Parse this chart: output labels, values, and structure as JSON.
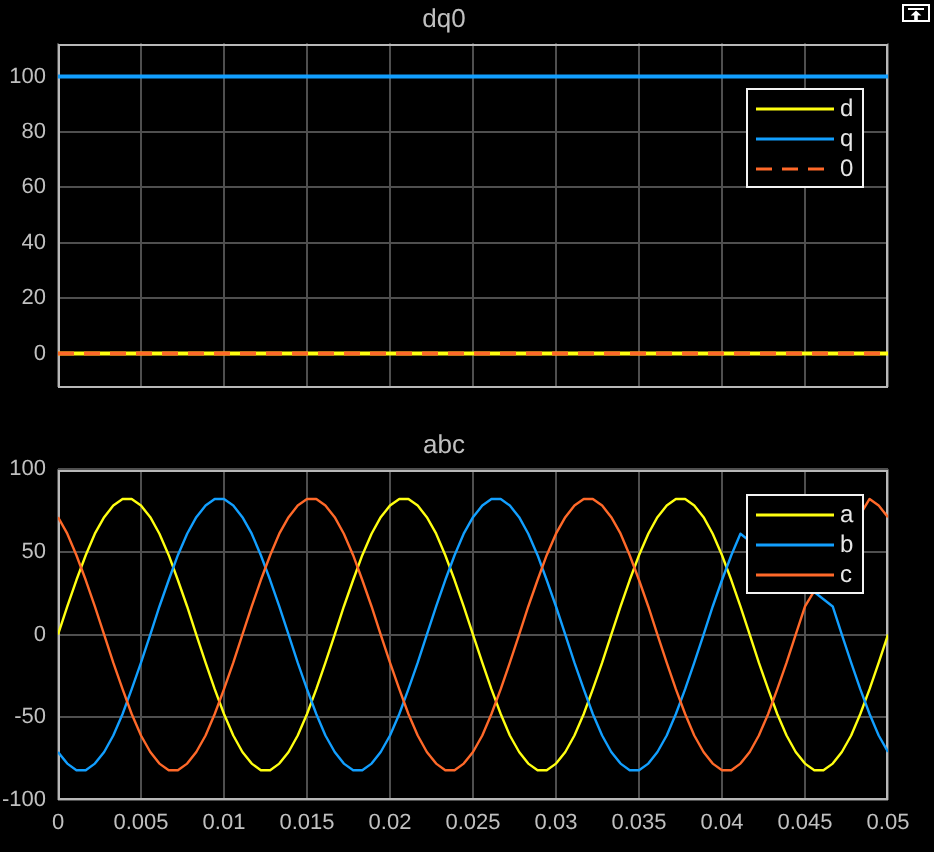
{
  "chart_data": [
    {
      "type": "line",
      "title": "dq0",
      "x": [
        0,
        0.05
      ],
      "series": [
        {
          "name": "d",
          "color": "#ffff11",
          "values": [
            0,
            0
          ]
        },
        {
          "name": "q",
          "color": "#129fff",
          "values": [
            100,
            100
          ]
        },
        {
          "name": "0",
          "color": "#ff6929",
          "values": [
            0,
            0
          ],
          "line_style": "dashed"
        }
      ],
      "xlim": [
        0,
        0.05
      ],
      "xticks": [
        0,
        0.005,
        0.01,
        0.015,
        0.02,
        0.025,
        0.03,
        0.035,
        0.04,
        0.045,
        0.05
      ],
      "ylim": [
        -12,
        112
      ],
      "yticks": [
        0,
        20,
        40,
        60,
        80,
        100
      ],
      "tick_labels": "y",
      "grid": true,
      "legend": "top right"
    },
    {
      "type": "line",
      "title": "abc",
      "x": [
        0,
        0.00056,
        0.00111,
        0.00167,
        0.00222,
        0.00278,
        0.00333,
        0.00389,
        0.00444,
        0.005,
        0.00556,
        0.00611,
        0.00667,
        0.00722,
        0.00778,
        0.00833,
        0.00889,
        0.00944,
        0.01,
        0.01056,
        0.01111,
        0.01167,
        0.01222,
        0.01278,
        0.01333,
        0.01389,
        0.01444,
        0.015,
        0.01556,
        0.01611,
        0.01667,
        0.01722,
        0.01778,
        0.01833,
        0.01889,
        0.01944,
        0.02,
        0.02056,
        0.02111,
        0.02167,
        0.02222,
        0.02278,
        0.02333,
        0.02389,
        0.02444,
        0.025,
        0.02556,
        0.02611,
        0.02667,
        0.02722,
        0.02778,
        0.02833,
        0.02889,
        0.02944,
        0.03,
        0.03056,
        0.03111,
        0.03167,
        0.03222,
        0.03278,
        0.03333,
        0.03389,
        0.03444,
        0.035,
        0.03556,
        0.03611,
        0.03667,
        0.03722,
        0.03778,
        0.03833,
        0.03889,
        0.03944,
        0.04,
        0.04056,
        0.04111,
        0.04167,
        0.04222,
        0.04278,
        0.04333,
        0.04389,
        0.04444,
        0.045,
        0.04556,
        0.04611,
        0.04667,
        0.04722,
        0.04778,
        0.04833,
        0.04889,
        0.04944,
        0.05
      ],
      "series": [
        {
          "name": "a",
          "color": "#ffff11",
          "values": [
            0,
            17,
            33,
            48,
            61,
            71,
            78,
            82,
            82,
            78,
            71,
            61,
            48,
            33,
            17,
            0,
            -17,
            -33,
            -48,
            -61,
            -71,
            -78,
            -82,
            -82,
            -78,
            -71,
            -61,
            -48,
            -33,
            -17,
            0,
            17,
            33,
            48,
            61,
            71,
            78,
            82,
            82,
            78,
            71,
            61,
            48,
            33,
            17,
            0,
            -17,
            -33,
            -48,
            -61,
            -71,
            -78,
            -82,
            -82,
            -78,
            -71,
            -61,
            -48,
            -33,
            -17,
            0,
            17,
            33,
            48,
            61,
            71,
            78,
            82,
            82,
            78,
            71,
            61,
            48,
            33,
            17,
            0,
            -17,
            -33,
            -48,
            -61,
            -71,
            -78,
            -82,
            -82,
            -78,
            -71,
            -61,
            -48,
            -33,
            -17,
            0
          ]
        },
        {
          "name": "b",
          "color": "#129fff",
          "values": [
            -71,
            -78,
            -82,
            -82,
            -78,
            -71,
            -61,
            -48,
            -33,
            -17,
            0,
            17,
            33,
            48,
            61,
            71,
            78,
            82,
            82,
            78,
            71,
            61,
            48,
            33,
            17,
            0,
            -17,
            -33,
            -48,
            -61,
            -71,
            -78,
            -82,
            -82,
            -78,
            -71,
            -61,
            -48,
            -33,
            -17,
            0,
            17,
            33,
            48,
            61,
            71,
            78,
            82,
            82,
            78,
            71,
            61,
            48,
            33,
            17,
            0,
            -17,
            -33,
            -48,
            -61,
            -71,
            -78,
            -82,
            -82,
            -78,
            -71,
            -61,
            -48,
            -33,
            -17,
            0,
            17,
            33,
            48,
            61,
            null,
            null,
            null,
            null,
            null,
            null,
            null,
            null,
            null,
            17,
            0,
            -17,
            -33,
            -48,
            -61,
            -71
          ]
        },
        {
          "name": "c",
          "color": "#ff6929",
          "values": [
            71,
            61,
            48,
            33,
            17,
            0,
            -17,
            -33,
            -48,
            -61,
            -71,
            -78,
            -82,
            -82,
            -78,
            -71,
            -61,
            -48,
            -33,
            -17,
            0,
            17,
            33,
            48,
            61,
            71,
            78,
            82,
            82,
            78,
            71,
            61,
            48,
            33,
            17,
            0,
            -17,
            -33,
            -48,
            -61,
            -71,
            -78,
            -82,
            -82,
            -78,
            -71,
            -61,
            -48,
            -33,
            -17,
            0,
            17,
            33,
            48,
            61,
            71,
            78,
            82,
            82,
            78,
            71,
            61,
            48,
            33,
            17,
            0,
            -17,
            -33,
            -48,
            -61,
            -71,
            -78,
            -82,
            -82,
            -78,
            -71,
            -61,
            -48,
            -33,
            -17,
            0,
            17,
            null,
            null,
            null,
            null,
            null,
            null,
            82,
            78,
            71
          ]
        }
      ],
      "xlim": [
        0,
        0.05
      ],
      "xticks": [
        0,
        0.005,
        0.01,
        0.015,
        0.02,
        0.025,
        0.03,
        0.035,
        0.04,
        0.045,
        0.05
      ],
      "ylim": [
        -100,
        100
      ],
      "yticks": [
        -100,
        -50,
        0,
        50,
        100
      ],
      "grid": true,
      "legend": "top right"
    }
  ]
}
